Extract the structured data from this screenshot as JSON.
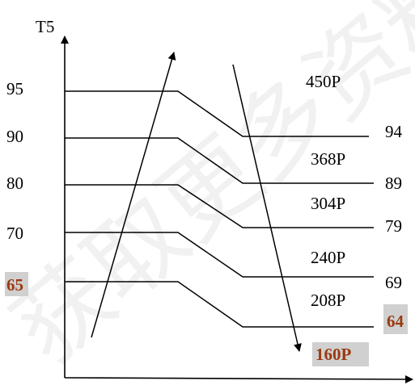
{
  "y_axis_label": "T5",
  "left_values": [
    "95",
    "90",
    "80",
    "70",
    "65"
  ],
  "right_values": [
    "94",
    "89",
    "79",
    "69",
    "64"
  ],
  "power_labels": [
    "450P",
    "368P",
    "304P",
    "240P",
    "208P",
    "160P"
  ],
  "highlight": {
    "left": "65",
    "right": "64",
    "bottom_power": "160P",
    "text_color": "#9b3a10",
    "box_color": "#d0d0d0"
  },
  "watermark": "获取更多资料"
}
